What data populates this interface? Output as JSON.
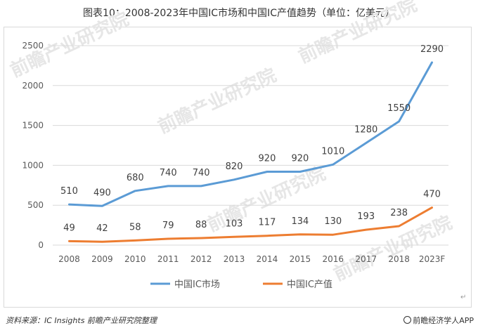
{
  "title": "图表10：2008-2023年中国IC市场和中国IC产值趋势（单位：亿美元）",
  "chart_data": {
    "type": "line",
    "title": "图表10：2008-2023年中国IC市场和中国IC产值趋势（单位：亿美元）",
    "categories": [
      "2008",
      "2009",
      "2010",
      "2011",
      "2012",
      "2013",
      "2014",
      "2015",
      "2016",
      "2017",
      "2018",
      "2023F"
    ],
    "series": [
      {
        "name": "中国IC市场",
        "color": "#5b9bd5",
        "values": [
          510,
          490,
          680,
          740,
          740,
          820,
          920,
          920,
          1010,
          1280,
          1550,
          2290
        ]
      },
      {
        "name": "中国IC产值",
        "color": "#ed7d31",
        "values": [
          49,
          42,
          58,
          79,
          88,
          103,
          117,
          134,
          130,
          193,
          238,
          470
        ]
      }
    ],
    "ylim": [
      0,
      2500
    ],
    "yticks": [
      0,
      500,
      1000,
      1500,
      2000,
      2500
    ],
    "grid": true,
    "legend": "bottom"
  },
  "watermark": "前瞻产业研究院",
  "footer": {
    "source": "资料来源：IC Insights 前瞻产业研究院整理",
    "brand": "前瞻经济学人APP",
    "brand_icon": "qianzhan-logo-icon"
  },
  "return_mark": "↵"
}
